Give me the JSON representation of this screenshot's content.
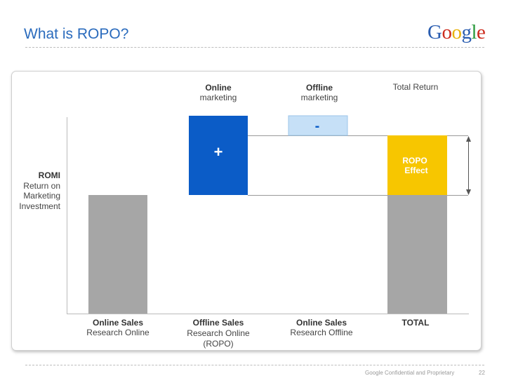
{
  "header": {
    "title": "What is ROPO?",
    "logo_text": "Google"
  },
  "footer": {
    "confidential": "Google Confidential and Proprietary",
    "page_number": "22"
  },
  "y_axis_label": {
    "bold": "ROMI",
    "line1": "Return on",
    "line2": "Marketing",
    "line3": "Investment"
  },
  "top_labels": [
    {
      "bold": "Online",
      "normal": "marketing"
    },
    {
      "bold": "Offline",
      "normal": "marketing"
    },
    {
      "bold": "",
      "normal": "Total Return"
    }
  ],
  "bar_symbols": {
    "plus": "+",
    "minus": "-",
    "ropo_line1": "ROPO",
    "ropo_line2": "Effect"
  },
  "bottom_labels": [
    {
      "bold": "Online Sales",
      "line1": "Research Online",
      "line2": ""
    },
    {
      "bold": "Offline Sales",
      "line1": "Research Online",
      "line2": "(ROPO)"
    },
    {
      "bold": "Online Sales",
      "line1": "Research Offline",
      "line2": ""
    },
    {
      "bold": "TOTAL",
      "line1": "",
      "line2": ""
    }
  ],
  "colors": {
    "title": "#2a6bbd",
    "gray_bar": "#a6a6a6",
    "blue_bar": "#0b5cc7",
    "light_blue_bar": "#c6e0f7",
    "yellow_bar": "#f7c600"
  }
}
